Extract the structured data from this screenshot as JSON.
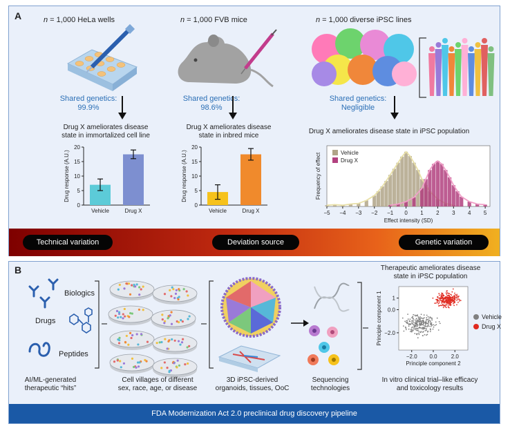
{
  "panelA": {
    "letter": "A",
    "col1": {
      "title_n": "n",
      "title_rest": " = 1,000 HeLa wells",
      "shared_label": "Shared genetics:",
      "shared_value": "99.9%",
      "outcome_line1": "Drug X ameliorates disease",
      "outcome_line2": "state in immortalized cell line"
    },
    "col2": {
      "title_n": "n",
      "title_rest": " = 1,000 FVB mice",
      "shared_label": "Shared genetics:",
      "shared_value": "98.6%",
      "outcome_line1": "Drug X ameliorates disease",
      "outcome_line2": "state in inbred mice"
    },
    "col3": {
      "title_n": "n",
      "title_rest": " = 1,000 diverse iPSC lines",
      "shared_label": "Shared genetics:",
      "shared_value": "Negligible",
      "outcome": "Drug X ameliorates disease state in iPSC population"
    },
    "gradient": {
      "left": "Technical variation",
      "center": "Deviation source",
      "right": "Genetic variation"
    }
  },
  "panelB": {
    "letter": "B",
    "drug_types": [
      "Biologics",
      "Drugs",
      "Peptides"
    ],
    "captions": [
      [
        "AI/ML-generated",
        "therapeutic “hits”"
      ],
      [
        "Cell villages of different",
        "sex, race, age, or disease"
      ],
      [
        "3D iPSC-derived",
        "organoids, tissues, OoC"
      ],
      [
        "Sequencing",
        "technologies"
      ],
      [
        "In vitro clinical trial–like efficacy",
        "and toxicology results"
      ]
    ],
    "scatter_title": [
      "Therapeutic ameliorates disease",
      "state in iPSC population"
    ],
    "footer": "FDA Modernization Act 2.0 preclinical drug discovery pipeline"
  },
  "chart_data": [
    {
      "type": "bar",
      "categories": [
        "Vehicle",
        "Drug X"
      ],
      "values": [
        7,
        17.5
      ],
      "errors": [
        2,
        1.5
      ],
      "ylabel": "Drug response (A.U.)",
      "ylim": [
        0,
        20
      ],
      "yticks": [
        0,
        5,
        10,
        15,
        20
      ],
      "colors": [
        "#5ccbd8",
        "#7d8fd0"
      ]
    },
    {
      "type": "bar",
      "categories": [
        "Vehicle",
        "Drug X"
      ],
      "values": [
        4.5,
        17.5
      ],
      "errors": [
        2.5,
        2
      ],
      "ylabel": "Drug response (A.U.)",
      "ylim": [
        0,
        20
      ],
      "yticks": [
        0,
        5,
        10,
        15,
        20
      ],
      "colors": [
        "#f6c21c",
        "#f08a2c"
      ]
    },
    {
      "type": "bar",
      "xlabel": "Effect intensity (SD)",
      "ylabel": "Frequency of effect",
      "xlim": [
        -5,
        5.3
      ],
      "xticks": [
        -5,
        -4,
        -3,
        -2,
        -1,
        0,
        1,
        2,
        3,
        4,
        5
      ],
      "legend": "top-left",
      "series": [
        {
          "name": "Vehicle",
          "color": "#b0a488",
          "line_color": "#e8e0a8",
          "x": [
            -5,
            -4.5,
            -4,
            -3.5,
            -3,
            -2.5,
            -2,
            -1.75,
            -1.5,
            -1.25,
            -1,
            -0.75,
            -0.5,
            -0.25,
            0,
            0.25,
            0.5,
            0.75,
            1,
            1.25,
            1.5,
            2,
            2.5,
            3
          ],
          "values": [
            0.02,
            0.03,
            0.02,
            0.04,
            0.05,
            0.1,
            0.18,
            0.25,
            0.33,
            0.42,
            0.52,
            0.62,
            0.72,
            0.82,
            0.9,
            0.83,
            0.72,
            0.6,
            0.45,
            0.35,
            0.25,
            0.12,
            0.05,
            0.02
          ]
        },
        {
          "name": "Drug X",
          "color": "#b2417f",
          "line_color": "#f0a0c8",
          "x": [
            -1,
            -0.5,
            0,
            0.5,
            1,
            1.25,
            1.5,
            1.75,
            2,
            2.25,
            2.5,
            2.75,
            3,
            3.25,
            3.5,
            4,
            4.5,
            5
          ],
          "values": [
            0.02,
            0.04,
            0.08,
            0.15,
            0.3,
            0.45,
            0.6,
            0.7,
            0.75,
            0.7,
            0.6,
            0.48,
            0.35,
            0.25,
            0.16,
            0.08,
            0.04,
            0.03
          ]
        }
      ]
    },
    {
      "type": "scatter",
      "xlabel": "Principle component 2",
      "ylabel": "Principle component 1",
      "xticks": [
        -2,
        0,
        2
      ],
      "xtick_labels": [
        "−2.0",
        "0.0",
        "2.0"
      ],
      "yticks": [
        1,
        0,
        -2
      ],
      "ytick_labels": [
        "1",
        "0.0",
        "−2.0"
      ],
      "xlim": [
        -3.2,
        3.2
      ],
      "ylim": [
        -3.5,
        2
      ],
      "legend": "right",
      "series": [
        {
          "name": "Vehicle",
          "color": "#808080",
          "center": [
            -1.2,
            -1.3
          ],
          "spread": [
            0.9,
            0.55
          ]
        },
        {
          "name": "Drug X",
          "color": "#e02a20",
          "center": [
            1.3,
            0.9
          ],
          "spread": [
            0.7,
            0.45
          ]
        }
      ]
    }
  ]
}
